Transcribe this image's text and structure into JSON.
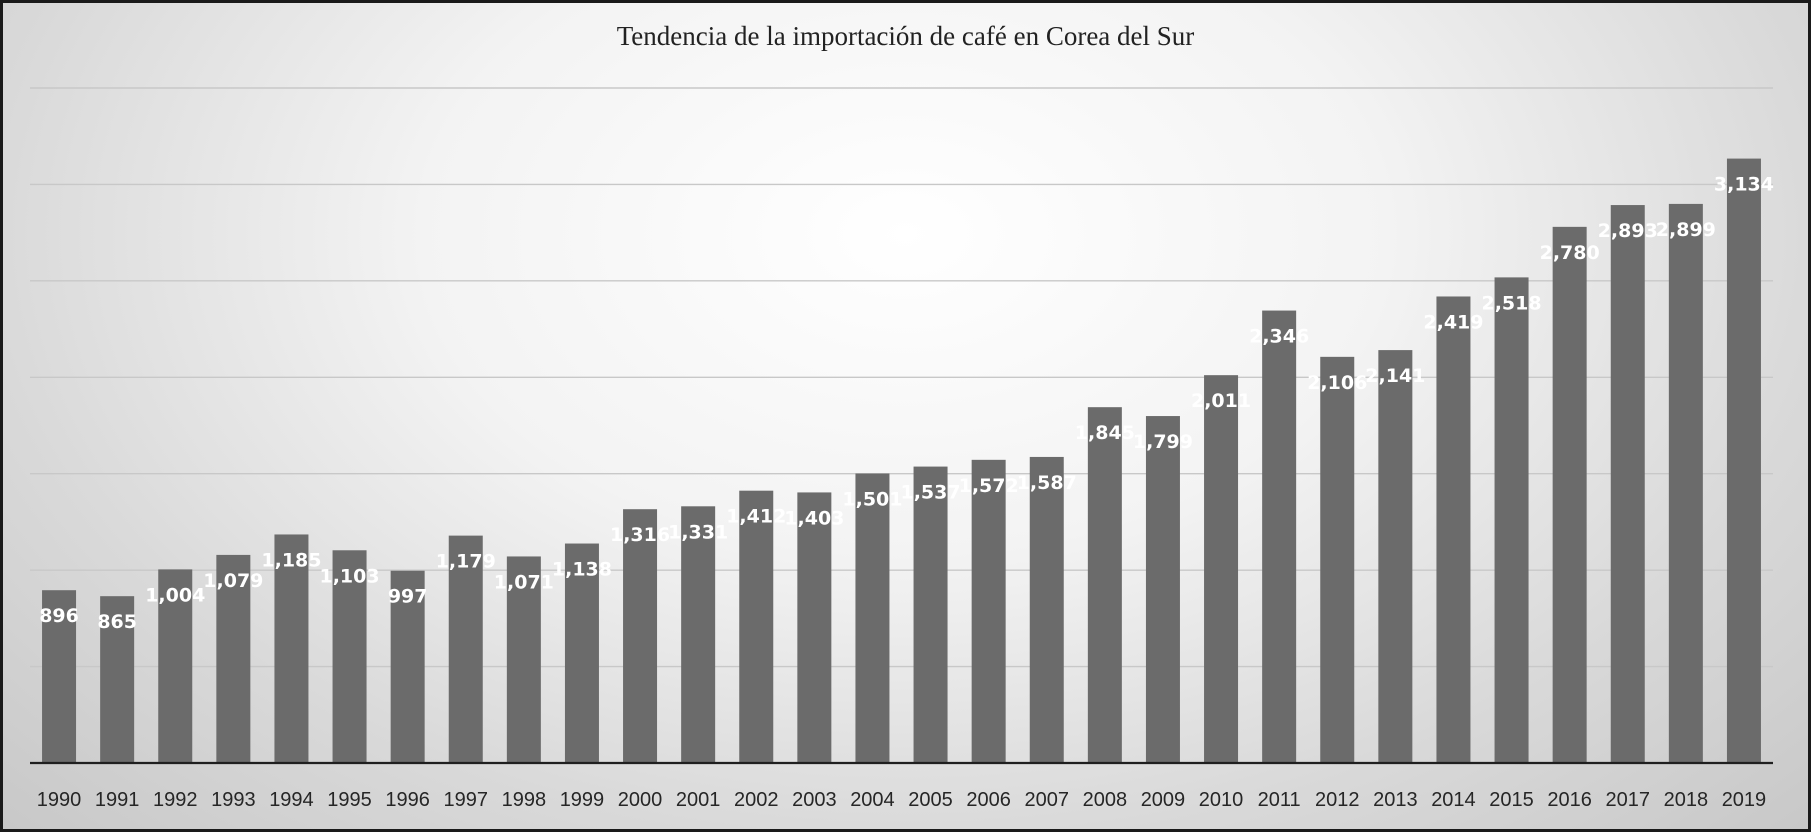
{
  "chart_data": {
    "type": "bar",
    "title": "Tendencia de la importación de café en Corea del Sur",
    "xlabel": "",
    "ylabel": "",
    "categories": [
      "1990",
      "1991",
      "1992",
      "1993",
      "1994",
      "1995",
      "1996",
      "1997",
      "1998",
      "1999",
      "2000",
      "2001",
      "2002",
      "2003",
      "2004",
      "2005",
      "2006",
      "2007",
      "2008",
      "2009",
      "2010",
      "2011",
      "2012",
      "2013",
      "2014",
      "2015",
      "2016",
      "2017",
      "2018",
      "2019"
    ],
    "values": [
      896,
      865,
      1004,
      1079,
      1185,
      1103,
      997,
      1179,
      1071,
      1138,
      1316,
      1331,
      1412,
      1403,
      1501,
      1537,
      1572,
      1587,
      1845,
      1799,
      2011,
      2346,
      2106,
      2141,
      2419,
      2518,
      2780,
      2893,
      2899,
      3134
    ],
    "value_labels": [
      "896",
      "865",
      "1,004",
      "1,079",
      "1,185",
      "1,103",
      "997",
      "1,179",
      "1,071",
      "1,138",
      "1,316",
      "1,331",
      "1,412",
      "1,403",
      "1,501",
      "1,537",
      "1,572",
      "1,587",
      "1,845",
      "1,799",
      "2,011",
      "2,346",
      "2,106",
      "2,141",
      "2,419",
      "2,518",
      "2,780",
      "2,893",
      "2,899",
      "3,134"
    ],
    "ylim": [
      0,
      3500
    ],
    "grid": true,
    "legend": "none",
    "bar_color": "#6b6b6b",
    "label_color": "#ffffff",
    "gridline_color": "#c8c8c8",
    "axis_color": "#1f1f1f"
  }
}
